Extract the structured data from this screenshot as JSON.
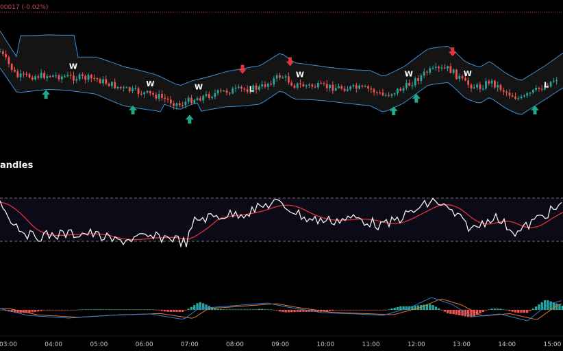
{
  "header": {
    "change_text": "00017 (-0.02%)"
  },
  "indicator_panel": {
    "title": "andles"
  },
  "colors": {
    "background": "#000000",
    "bullish": "#26a69a",
    "bearish": "#ef5350",
    "band": "#3d8fd8",
    "band_fill": "#141414",
    "buy_arrow": "#22a68a",
    "sell_arrow": "#e0353f",
    "oscillator": "#f2f2f2",
    "signal_line": "#e0323f",
    "macd_line": "#2f7fd8",
    "macd_signal": "#e8762e",
    "osc_band": "#0d0a17"
  },
  "chart_data": {
    "type": "candlestick",
    "x_ticks": [
      "03:00",
      "04:00",
      "05:00",
      "06:00",
      "07:00",
      "08:00",
      "09:00",
      "10:00",
      "11:00",
      "12:00",
      "13:00",
      "14:00",
      "15:00"
    ],
    "signals": [
      {
        "type": "buy_arrow",
        "near": "03:50"
      },
      {
        "type": "W",
        "near": "04:26"
      },
      {
        "type": "buy_arrow",
        "near": "05:45"
      },
      {
        "type": "W",
        "near": "06:08"
      },
      {
        "type": "W",
        "near": "07:12"
      },
      {
        "type": "buy_arrow",
        "near": "07:00"
      },
      {
        "type": "sell_arrow",
        "near": "08:10"
      },
      {
        "type": "L",
        "near": "08:22"
      },
      {
        "type": "sell_arrow",
        "near": "09:13"
      },
      {
        "type": "W",
        "near": "09:26"
      },
      {
        "type": "buy_arrow",
        "near": "11:30"
      },
      {
        "type": "W",
        "near": "11:50"
      },
      {
        "type": "buy_arrow",
        "near": "12:00"
      },
      {
        "type": "sell_arrow",
        "near": "12:48"
      },
      {
        "type": "W",
        "near": "13:08"
      },
      {
        "type": "buy_arrow",
        "near": "14:37"
      },
      {
        "type": "L",
        "near": "14:52"
      }
    ],
    "oscillator_panel": {
      "series": [
        "oscillator",
        "signal"
      ],
      "overbought_line": true,
      "oversold_line": true
    },
    "macd_panel": {
      "series": [
        "macd",
        "signal",
        "histogram"
      ]
    }
  }
}
